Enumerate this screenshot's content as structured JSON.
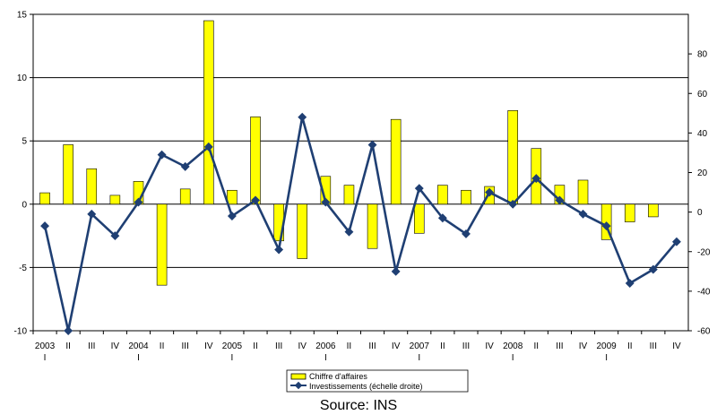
{
  "chart_data": {
    "type": "bar+line",
    "categories": [
      {
        "q": "2003",
        "y": "I"
      },
      {
        "q": "II"
      },
      {
        "q": "III"
      },
      {
        "q": "IV"
      },
      {
        "q": "2004",
        "y": "I"
      },
      {
        "q": "II"
      },
      {
        "q": "III"
      },
      {
        "q": "IV"
      },
      {
        "q": "2005",
        "y": "I"
      },
      {
        "q": "II"
      },
      {
        "q": "III"
      },
      {
        "q": "IV"
      },
      {
        "q": "2006",
        "y": "I"
      },
      {
        "q": "II"
      },
      {
        "q": "III"
      },
      {
        "q": "IV"
      },
      {
        "q": "2007",
        "y": "I"
      },
      {
        "q": "II"
      },
      {
        "q": "III"
      },
      {
        "q": "IV"
      },
      {
        "q": "2008",
        "y": "I"
      },
      {
        "q": "II"
      },
      {
        "q": "III"
      },
      {
        "q": "IV"
      },
      {
        "q": "2009",
        "y": "I"
      },
      {
        "q": "II"
      },
      {
        "q": "III"
      },
      {
        "q": "IV"
      }
    ],
    "series": [
      {
        "name": "Chiffre d'affaires",
        "kind": "bar",
        "axis": "left",
        "color": "#ffff00",
        "values": [
          0.9,
          4.7,
          2.8,
          0.7,
          1.8,
          -6.4,
          1.2,
          14.5,
          1.1,
          6.9,
          -2.9,
          -4.3,
          2.2,
          1.5,
          -3.5,
          6.7,
          -2.3,
          1.5,
          1.1,
          1.4,
          7.4,
          4.4,
          1.5,
          1.9,
          -2.8,
          -1.4,
          -1.0,
          0.0
        ]
      },
      {
        "name": "Investissements (échelle droite)",
        "kind": "line",
        "axis": "right",
        "color": "#1f3f73",
        "values": [
          -7,
          -60,
          -1,
          -12,
          5,
          29,
          23,
          33,
          -2,
          6,
          -19,
          48,
          5,
          -10,
          34,
          -30,
          12,
          -3,
          -11,
          10,
          4,
          17,
          6,
          -1,
          -7,
          -36,
          -29,
          -15
        ]
      }
    ],
    "y_left": {
      "min": -10,
      "max": 15,
      "ticks": [
        -10,
        -5,
        0,
        5,
        10,
        15
      ]
    },
    "y_right": {
      "min": -60,
      "max": 100,
      "ticks": [
        -60,
        -40,
        -20,
        0,
        20,
        40,
        60,
        80
      ]
    },
    "grid": "horizontal major lines on left axis",
    "legend_position": "bottom"
  },
  "legend": {
    "item1": "Chiffre d'affaires",
    "item2": "Investissements (échelle droite)"
  },
  "source": "Source: INS"
}
